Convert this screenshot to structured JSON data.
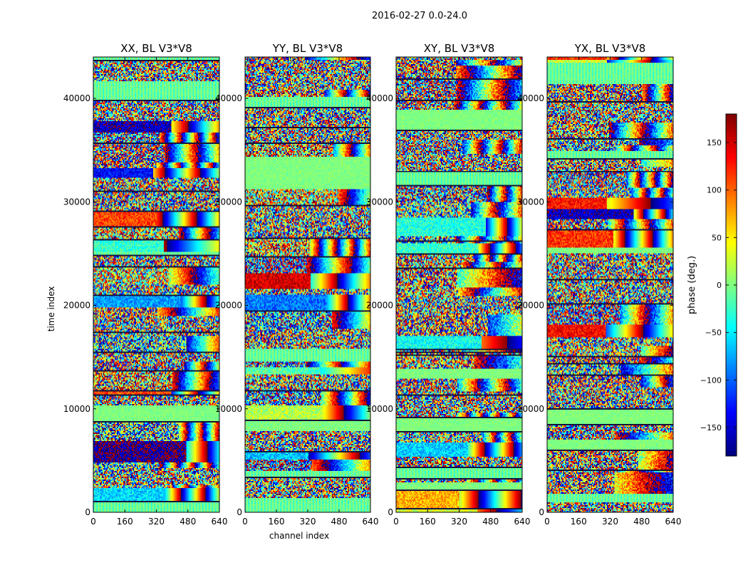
{
  "figure": {
    "suptitle": "2016-02-27 0.0-24.0"
  },
  "chart_data": [
    {
      "type": "heatmap",
      "title": "XX, BL V3*V8",
      "xlabel": "",
      "ylabel": "time index",
      "xlim": [
        0,
        640
      ],
      "ylim": [
        0,
        44000
      ],
      "xticks": [
        0,
        160,
        320,
        480,
        640
      ],
      "xtick_labels": [
        "0",
        "160",
        "320",
        "480",
        "640"
      ],
      "yticks": [
        0,
        10000,
        20000,
        30000,
        40000
      ],
      "ytick_labels": [
        "0",
        "10000",
        "20000",
        "30000",
        "40000"
      ],
      "colormap": "jet",
      "value_range": [
        -180,
        180
      ],
      "seed": 11,
      "coherence": 0.55
    },
    {
      "type": "heatmap",
      "title": "YY, BL V3*V8",
      "xlabel": "channel index",
      "ylabel": "",
      "xlim": [
        0,
        640
      ],
      "ylim": [
        0,
        44000
      ],
      "xticks": [
        0,
        160,
        320,
        480,
        640
      ],
      "xtick_labels": [
        "0",
        "160",
        "320",
        "480",
        "640"
      ],
      "yticks": [
        0,
        10000,
        20000,
        30000,
        40000
      ],
      "ytick_labels": [
        "0",
        "10000",
        "20000",
        "30000",
        "40000"
      ],
      "colormap": "jet",
      "value_range": [
        -180,
        180
      ],
      "seed": 23,
      "coherence": 0.6
    },
    {
      "type": "heatmap",
      "title": "XY, BL V3*V8",
      "xlabel": "",
      "ylabel": "",
      "xlim": [
        0,
        640
      ],
      "ylim": [
        0,
        44000
      ],
      "xticks": [
        0,
        160,
        320,
        480,
        640
      ],
      "xtick_labels": [
        "0",
        "160",
        "320",
        "480",
        "640"
      ],
      "yticks": [
        0,
        10000,
        20000,
        30000,
        40000
      ],
      "ytick_labels": [
        "0",
        "10000",
        "20000",
        "30000",
        "40000"
      ],
      "colormap": "jet",
      "value_range": [
        -180,
        180
      ],
      "seed": 37,
      "coherence": 0.35
    },
    {
      "type": "heatmap",
      "title": "YX, BL V3*V8",
      "xlabel": "",
      "ylabel": "",
      "xlim": [
        0,
        640
      ],
      "ylim": [
        0,
        44000
      ],
      "xticks": [
        0,
        160,
        320,
        480,
        640
      ],
      "xtick_labels": [
        "0",
        "160",
        "320",
        "480",
        "640"
      ],
      "yticks": [
        0,
        10000,
        20000,
        30000,
        40000
      ],
      "ytick_labels": [
        "0",
        "10000",
        "20000",
        "30000",
        "40000"
      ],
      "colormap": "jet",
      "value_range": [
        -180,
        180
      ],
      "seed": 53,
      "coherence": 0.4
    }
  ],
  "colorbar": {
    "label": "phase (deg.)",
    "range": [
      -180,
      180
    ],
    "ticks": [
      -150,
      -100,
      -50,
      0,
      50,
      100,
      150
    ],
    "tick_labels": [
      "−150",
      "−100",
      "−50",
      "0",
      "50",
      "100",
      "150"
    ]
  }
}
